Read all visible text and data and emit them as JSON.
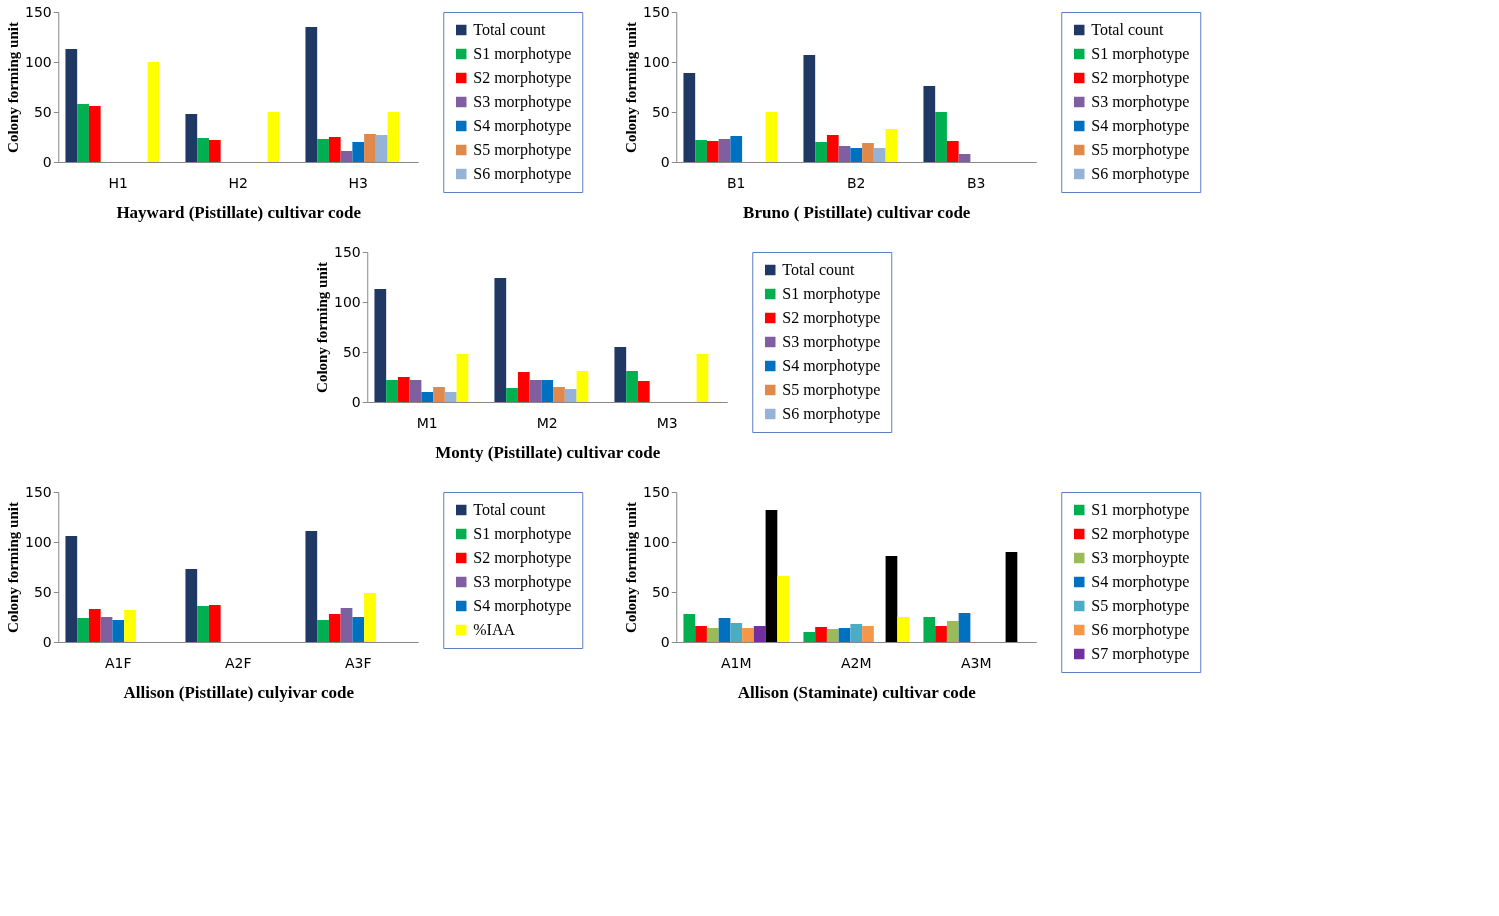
{
  "chart_data": [
    {
      "type": "bar",
      "categories": [
        "H1",
        "H2",
        "H3"
      ],
      "xlabel": "Hayward (Pistillate) cultivar code",
      "ylabel": "Colony forming unit",
      "ylim": [
        0,
        150
      ],
      "yticks": [
        0,
        50,
        100,
        150
      ],
      "grid": false,
      "legend": "right",
      "series": [
        {
          "name": "Total count",
          "color": "#1f3864",
          "values": [
            113,
            48,
            135
          ]
        },
        {
          "name": "S1 morphotype",
          "color": "#00b050",
          "values": [
            58,
            24,
            23
          ]
        },
        {
          "name": "S2 morphotype",
          "color": "#ff0000",
          "values": [
            56,
            22,
            25
          ]
        },
        {
          "name": "S3 morphotype",
          "color": "#7f5f9f",
          "values": [
            null,
            null,
            11
          ]
        },
        {
          "name": "S4 morphotype",
          "color": "#0070c0",
          "values": [
            null,
            null,
            20
          ]
        },
        {
          "name": "S5 morphotype",
          "color": "#e0894a",
          "values": [
            null,
            null,
            28
          ]
        },
        {
          "name": "S6 morphotype",
          "color": "#95b3d7",
          "values": [
            null,
            null,
            27
          ]
        },
        {
          "color": "#ffff00",
          "values": [
            100,
            50,
            50
          ]
        }
      ]
    },
    {
      "type": "bar",
      "categories": [
        "B1",
        "B2",
        "B3"
      ],
      "xlabel": "Bruno ( Pistillate) cultivar code",
      "ylabel": "Colony forming unit",
      "ylim": [
        0,
        150
      ],
      "yticks": [
        0,
        50,
        100,
        150
      ],
      "grid": false,
      "legend": "right",
      "series": [
        {
          "name": "Total count",
          "color": "#1f3864",
          "values": [
            89,
            107,
            76
          ]
        },
        {
          "name": "S1 morphotype",
          "color": "#00b050",
          "values": [
            22,
            20,
            50
          ]
        },
        {
          "name": "S2 morphotype",
          "color": "#ff0000",
          "values": [
            21,
            27,
            21
          ]
        },
        {
          "name": "S3 morphotype",
          "color": "#7f5f9f",
          "values": [
            23,
            16,
            8
          ]
        },
        {
          "name": "S4 morphotype",
          "color": "#0070c0",
          "values": [
            26,
            14,
            null
          ]
        },
        {
          "name": "S5 morphotype",
          "color": "#e0894a",
          "values": [
            null,
            19,
            null
          ]
        },
        {
          "name": "S6 morphotype",
          "color": "#95b3d7",
          "values": [
            null,
            14,
            null
          ]
        },
        {
          "color": "#ffff00",
          "values": [
            50,
            33,
            null
          ]
        }
      ]
    },
    {
      "type": "bar",
      "categories": [
        "M1",
        "M2",
        "M3"
      ],
      "xlabel": "Monty (Pistillate) cultivar code",
      "ylabel": "Colony forming unit",
      "ylim": [
        0,
        150
      ],
      "yticks": [
        0,
        50,
        100,
        150
      ],
      "grid": false,
      "legend": "right",
      "series": [
        {
          "name": "Total count",
          "color": "#1f3864",
          "values": [
            113,
            124,
            55
          ]
        },
        {
          "name": "S1 morphotype",
          "color": "#00b050",
          "values": [
            22,
            14,
            31
          ]
        },
        {
          "name": "S2 morphotype",
          "color": "#ff0000",
          "values": [
            25,
            30,
            21
          ]
        },
        {
          "name": "S3 morphotype",
          "color": "#7f5f9f",
          "values": [
            22,
            22,
            null
          ]
        },
        {
          "name": "S4 morphotype",
          "color": "#0070c0",
          "values": [
            10,
            22,
            null
          ]
        },
        {
          "name": "S5 morphotype",
          "color": "#e0894a",
          "values": [
            15,
            15,
            null
          ]
        },
        {
          "name": "S6 morphotype",
          "color": "#95b3d7",
          "values": [
            10,
            13,
            null
          ]
        },
        {
          "color": "#ffff00",
          "values": [
            48,
            31,
            48
          ]
        }
      ]
    },
    {
      "type": "bar",
      "categories": [
        "A1F",
        "A2F",
        "A3F"
      ],
      "xlabel": "Allison (Pistillate) culyivar code",
      "ylabel": "Colony forming unit",
      "ylim": [
        0,
        150
      ],
      "yticks": [
        0,
        50,
        100,
        150
      ],
      "grid": false,
      "legend": "right",
      "series": [
        {
          "name": "Total count",
          "color": "#1f3864",
          "values": [
            106,
            73,
            111
          ]
        },
        {
          "name": "S1 morphotype",
          "color": "#00b050",
          "values": [
            24,
            36,
            22
          ]
        },
        {
          "name": "S2 morphotype",
          "color": "#ff0000",
          "values": [
            33,
            37,
            28
          ]
        },
        {
          "name": "S3 morphotype",
          "color": "#7f5f9f",
          "values": [
            25,
            null,
            34
          ]
        },
        {
          "name": "S4 morphotype",
          "color": "#0070c0",
          "values": [
            22,
            null,
            25
          ]
        },
        {
          "name": "%IAA",
          "color": "#ffff00",
          "values": [
            32,
            null,
            49
          ]
        }
      ]
    },
    {
      "type": "bar",
      "categories": [
        "A1M",
        "A2M",
        "A3M"
      ],
      "xlabel": "Allison (Staminate) cultivar code",
      "ylabel": "Colony forming unit",
      "ylim": [
        0,
        150
      ],
      "yticks": [
        0,
        50,
        100,
        150
      ],
      "grid": false,
      "legend": "right",
      "series": [
        {
          "name": "S1 morphotype",
          "color": "#00b050",
          "values": [
            28,
            10,
            25
          ]
        },
        {
          "name": "S2 morphotype",
          "color": "#ff0000",
          "values": [
            16,
            15,
            16
          ]
        },
        {
          "name": "S3 morphoypte",
          "color": "#9bbb59",
          "values": [
            14,
            13,
            21
          ]
        },
        {
          "name": "S4 morphotype",
          "color": "#0070c0",
          "values": [
            24,
            14,
            29
          ]
        },
        {
          "name": "S5 morphotype",
          "color": "#4bacc6",
          "values": [
            19,
            18,
            null
          ]
        },
        {
          "name": "S6 morphotype",
          "color": "#f79646",
          "values": [
            14,
            16,
            null
          ]
        },
        {
          "name": "S7 morphotype",
          "color": "#7030a0",
          "values": [
            16,
            null,
            null
          ]
        },
        {
          "color": "#000000",
          "values": [
            132,
            86,
            90
          ]
        },
        {
          "color": "#ffff00",
          "values": [
            66,
            25,
            null
          ]
        }
      ]
    }
  ]
}
